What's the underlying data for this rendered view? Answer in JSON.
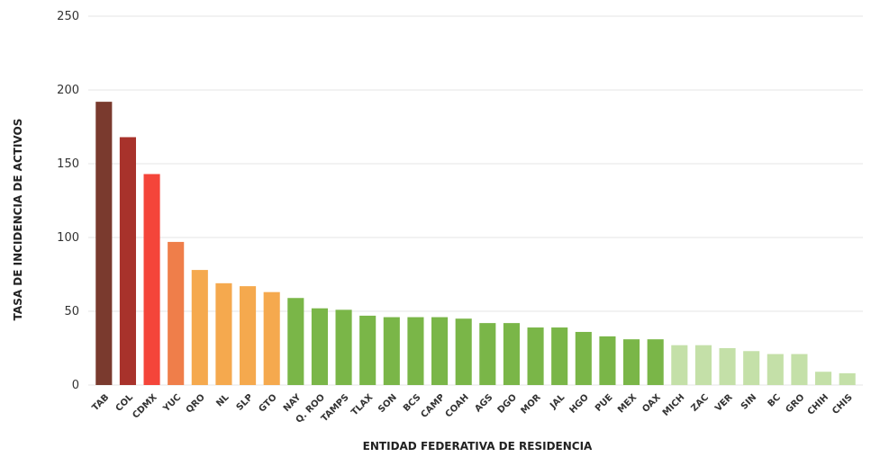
{
  "chart_data": {
    "type": "bar",
    "title": "",
    "xlabel": "ENTIDAD FEDERATIVA DE RESIDENCIA",
    "ylabel": "TASA DE INCIDENCIA DE ACTIVOS",
    "ylim": [
      0,
      250
    ],
    "yticks": [
      0,
      50,
      100,
      150,
      200,
      250
    ],
    "grid": true,
    "legend": "none",
    "categories": [
      "TAB",
      "COL",
      "CDMX",
      "YUC",
      "QRO",
      "NL",
      "SLP",
      "GTO",
      "NAY",
      "Q. ROO",
      "TAMPS",
      "TLAX",
      "SON",
      "BCS",
      "CAMP",
      "COAH",
      "AGS",
      "DGO",
      "MOR",
      "JAL",
      "HGO",
      "PUE",
      "MEX",
      "OAX",
      "MICH",
      "ZAC",
      "VER",
      "SIN",
      "BC",
      "GRO",
      "CHIH",
      "CHIS"
    ],
    "values": [
      192,
      168,
      143,
      97,
      78,
      69,
      67,
      63,
      59,
      52,
      51,
      47,
      46,
      46,
      46,
      45,
      42,
      42,
      39,
      39,
      36,
      33,
      31,
      31,
      27,
      27,
      25,
      23,
      21,
      21,
      9,
      8
    ],
    "bar_colors": [
      "#7a3a2e",
      "#a8322b",
      "#f4453a",
      "#ef7e4a",
      "#f5a94e",
      "#f5a94e",
      "#f5a94e",
      "#f5a94e",
      "#7ab648",
      "#7ab648",
      "#7ab648",
      "#7ab648",
      "#7ab648",
      "#7ab648",
      "#7ab648",
      "#7ab648",
      "#7ab648",
      "#7ab648",
      "#7ab648",
      "#7ab648",
      "#7ab648",
      "#7ab648",
      "#7ab648",
      "#7ab648",
      "#c4e0a8",
      "#c4e0a8",
      "#c4e0a8",
      "#c4e0a8",
      "#c4e0a8",
      "#c4e0a8",
      "#c4e0a8",
      "#c4e0a8"
    ]
  }
}
